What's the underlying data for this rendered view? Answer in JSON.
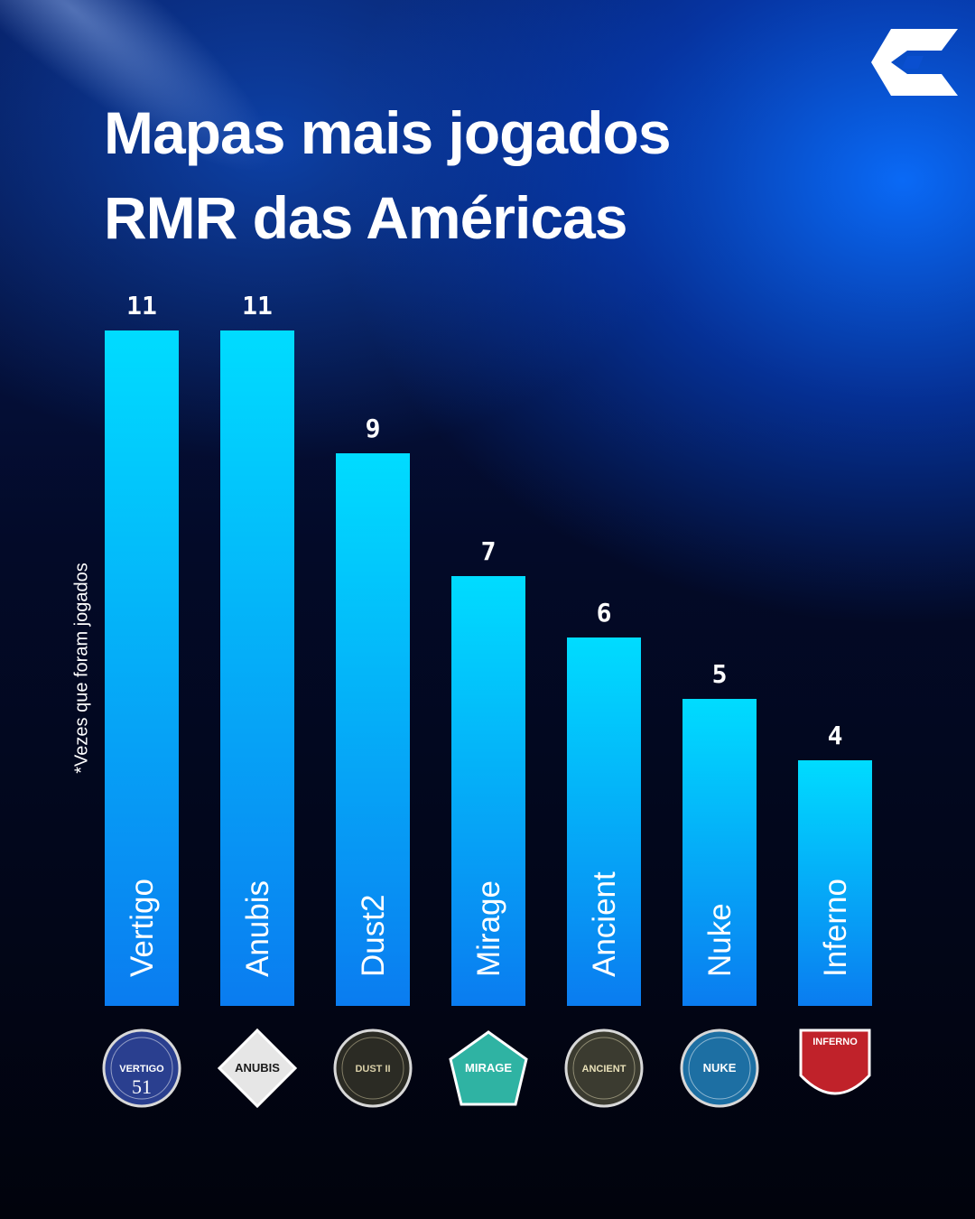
{
  "header": {
    "title_line1": "Mapas mais jogados",
    "title_line2": "RMR das Américas",
    "logo_icon": "brand-logo-icon"
  },
  "chart_data": {
    "type": "bar",
    "categories": [
      "Vertigo",
      "Anubis",
      "Dust2",
      "Mirage",
      "Ancient",
      "Nuke",
      "Inferno"
    ],
    "values": [
      11,
      11,
      9,
      7,
      6,
      5,
      4
    ],
    "ylabel": "*Vezes que foram jogados",
    "ylim": [
      0,
      11
    ],
    "grid": false,
    "bar_color_top": "#00dcff",
    "bar_color_bottom": "#0a7cf0"
  },
  "badges": [
    {
      "icon": "vertigo-badge-icon",
      "text": "VERTIGO",
      "sub": "51",
      "bg": "#2a3f8f",
      "fg": "#ffffff"
    },
    {
      "icon": "anubis-badge-icon",
      "text": "ANUBIS",
      "sub": "",
      "bg": "#e6e6e6",
      "fg": "#1a1a1a"
    },
    {
      "icon": "dust2-badge-icon",
      "text": "DUST II",
      "sub": "",
      "bg": "#2b2b24",
      "fg": "#d9cfa8"
    },
    {
      "icon": "mirage-badge-icon",
      "text": "MIRAGE",
      "sub": "",
      "bg": "#2fb3a3",
      "fg": "#ffffff"
    },
    {
      "icon": "ancient-badge-icon",
      "text": "ANCIENT",
      "sub": "",
      "bg": "#3b3b30",
      "fg": "#e8e0b8"
    },
    {
      "icon": "nuke-badge-icon",
      "text": "NUKE",
      "sub": "",
      "bg": "#1d6fa3",
      "fg": "#ffffff"
    },
    {
      "icon": "inferno-badge-icon",
      "text": "INFERNO",
      "sub": "",
      "bg": "#c0222a",
      "fg": "#ffffff"
    }
  ]
}
